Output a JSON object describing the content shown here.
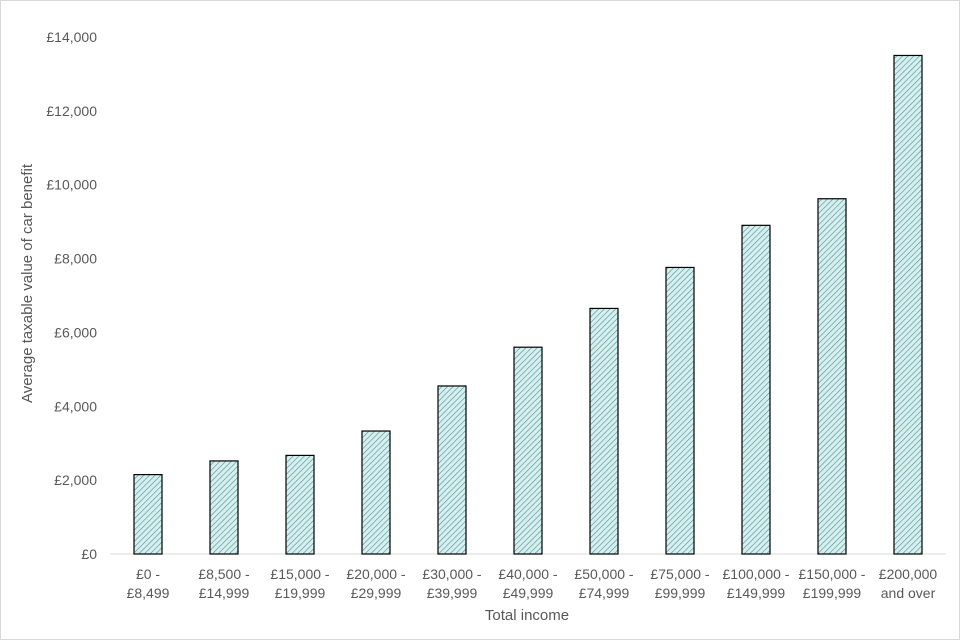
{
  "chart_data": {
    "type": "bar",
    "xlabel": "Total income",
    "ylabel": "Average taxable value of car benefit",
    "ylim": [
      0,
      14000
    ],
    "y_ticks": [
      "£0",
      "£2,000",
      "£4,000",
      "£6,000",
      "£8,000",
      "£10,000",
      "£12,000",
      "£14,000"
    ],
    "y_tick_values": [
      0,
      2000,
      4000,
      6000,
      8000,
      10000,
      12000,
      14000
    ],
    "grid": false,
    "legend": "none",
    "categories": [
      [
        "£0 -",
        "£8,499"
      ],
      [
        "£8,500 -",
        "£14,999"
      ],
      [
        "£15,000 -",
        "£19,999"
      ],
      [
        "£20,000 -",
        "£29,999"
      ],
      [
        "£30,000 -",
        "£39,999"
      ],
      [
        "£40,000 -",
        "£49,999"
      ],
      [
        "£50,000 -",
        "£74,999"
      ],
      [
        "£75,000 -",
        "£99,999"
      ],
      [
        "£100,000 -",
        "£149,999"
      ],
      [
        "£150,000 -",
        "£199,999"
      ],
      [
        "£200,000",
        "and over"
      ]
    ],
    "values": [
      2150,
      2520,
      2670,
      3330,
      4550,
      5600,
      6650,
      7760,
      8900,
      9620,
      13500
    ],
    "colors": {
      "bar_fill": "#d9eeee",
      "bar_hatch": "#4a9a9a",
      "bar_stroke": "#000000",
      "axis": "#d9d9d9",
      "text": "#595959"
    }
  }
}
